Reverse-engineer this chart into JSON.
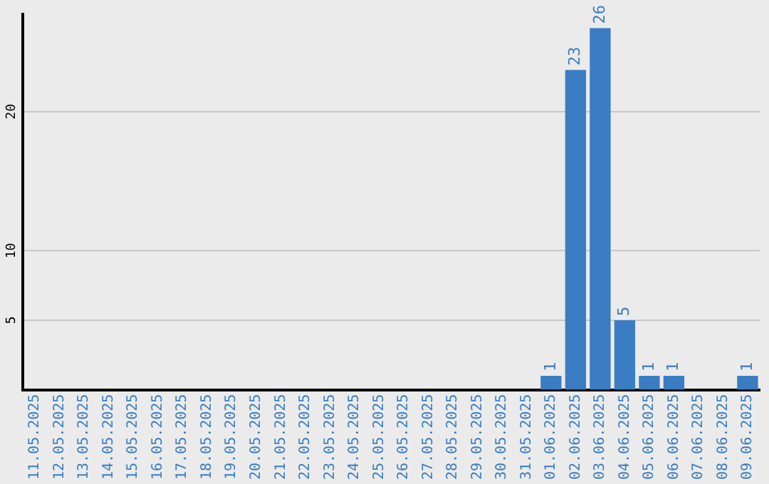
{
  "chart_data": {
    "type": "bar",
    "categories": [
      "11.05.2025",
      "12.05.2025",
      "13.05.2025",
      "14.05.2025",
      "15.05.2025",
      "16.05.2025",
      "17.05.2025",
      "18.05.2025",
      "19.05.2025",
      "20.05.2025",
      "21.05.2025",
      "22.05.2025",
      "23.05.2025",
      "24.05.2025",
      "25.05.2025",
      "26.05.2025",
      "27.05.2025",
      "28.05.2025",
      "29.05.2025",
      "30.05.2025",
      "31.05.2025",
      "01.06.2025",
      "02.06.2025",
      "03.06.2025",
      "04.06.2025",
      "05.06.2025",
      "06.06.2025",
      "07.06.2025",
      "08.06.2025",
      "09.06.2025"
    ],
    "values": [
      0,
      0,
      0,
      0,
      0,
      0,
      0,
      0,
      0,
      0,
      0,
      0,
      0,
      0,
      0,
      0,
      0,
      0,
      0,
      0,
      0,
      1,
      23,
      26,
      5,
      1,
      1,
      0,
      0,
      1
    ],
    "value_labels": [
      null,
      null,
      null,
      null,
      null,
      null,
      null,
      null,
      null,
      null,
      null,
      null,
      null,
      null,
      null,
      null,
      null,
      null,
      null,
      null,
      null,
      "1",
      "23",
      "26",
      "5",
      "1",
      "1",
      null,
      null,
      "1"
    ],
    "color": "#3a7dc2",
    "ylim": [
      0,
      27
    ],
    "yticks": [
      5,
      10,
      20
    ],
    "grid": "y",
    "legend": false
  }
}
